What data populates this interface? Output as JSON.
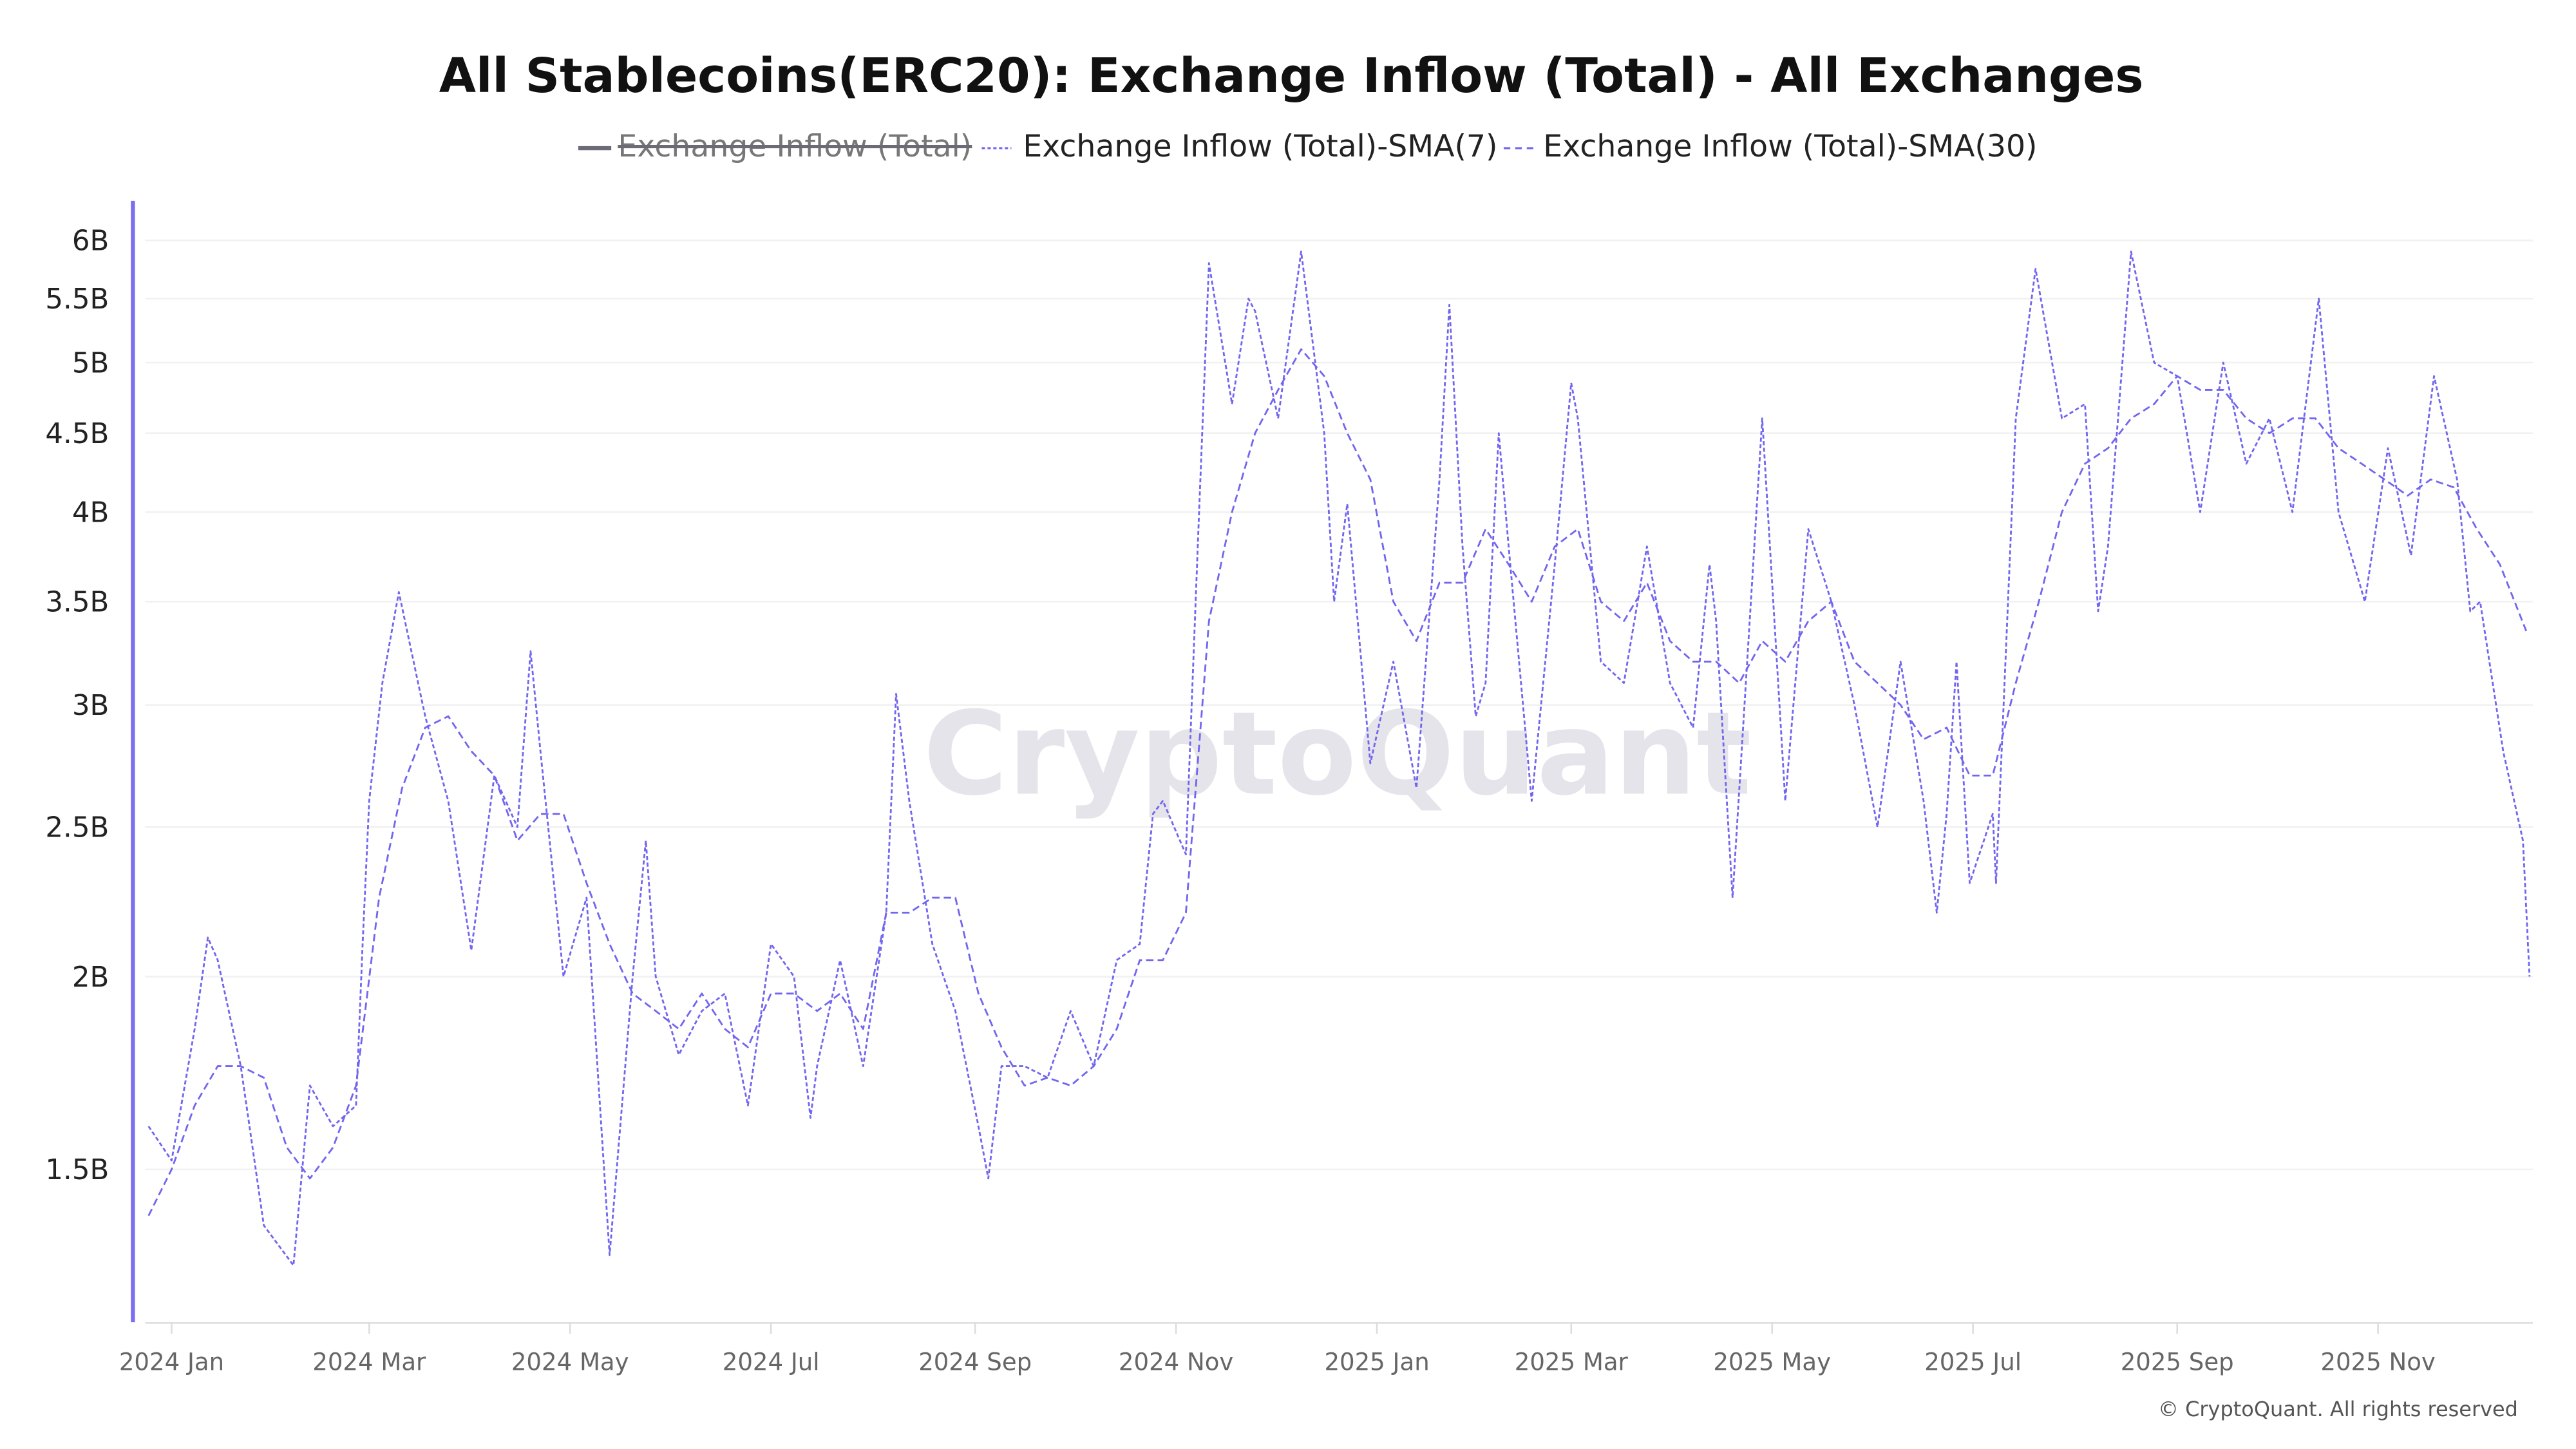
{
  "chart_data": {
    "type": "line",
    "title": "All Stablecoins(ERC20): Exchange Inflow (Total) - All Exchanges",
    "y_scale": "log",
    "ylim": [
      1.19,
      6.36
    ],
    "y_ticks": [
      {
        "value": 6,
        "label": "6B"
      },
      {
        "value": 5.5,
        "label": "5.5B"
      },
      {
        "value": 5,
        "label": "5B"
      },
      {
        "value": 4.5,
        "label": "4.5B"
      },
      {
        "value": 4,
        "label": "4B"
      },
      {
        "value": 3.5,
        "label": "3.5B"
      },
      {
        "value": 3,
        "label": "3B"
      },
      {
        "value": 2.5,
        "label": "2.5B"
      },
      {
        "value": 2,
        "label": "2B"
      },
      {
        "value": 1.5,
        "label": "1.5B"
      }
    ],
    "xlim": [
      "2023-12-24",
      "2025-12-17"
    ],
    "x_ticks": [
      {
        "date": "2024-01-01",
        "label": "2024 Jan"
      },
      {
        "date": "2024-03-01",
        "label": "2024 Mar"
      },
      {
        "date": "2024-05-01",
        "label": "2024 May"
      },
      {
        "date": "2024-07-01",
        "label": "2024 Jul"
      },
      {
        "date": "2024-09-01",
        "label": "2024 Sep"
      },
      {
        "date": "2024-11-01",
        "label": "2024 Nov"
      },
      {
        "date": "2025-01-01",
        "label": "2025 Jan"
      },
      {
        "date": "2025-03-01",
        "label": "2025 Mar"
      },
      {
        "date": "2025-05-01",
        "label": "2025 May"
      },
      {
        "date": "2025-07-01",
        "label": "2025 Jul"
      },
      {
        "date": "2025-09-01",
        "label": "2025 Sep"
      },
      {
        "date": "2025-11-01",
        "label": "2025 Nov"
      }
    ],
    "grid": true,
    "legend_position": "top",
    "line_color": "#7166ef",
    "legend": [
      {
        "name": "Exchange Inflow (Total)",
        "hidden": true,
        "color": "#6b6b78"
      },
      {
        "name": "Exchange Inflow (Total)-SMA(7)",
        "hidden": false,
        "color": "#7166ef"
      },
      {
        "name": "Exchange Inflow (Total)-SMA(30)",
        "hidden": false,
        "color": "#7166ef"
      }
    ],
    "series": [
      {
        "name": "Exchange Inflow (Total)-SMA(7)",
        "unit": "B",
        "points": [
          [
            "2023-12-25",
            1.6
          ],
          [
            "2024-01-01",
            1.52
          ],
          [
            "2024-01-08",
            1.85
          ],
          [
            "2024-01-12",
            2.12
          ],
          [
            "2024-01-15",
            2.05
          ],
          [
            "2024-01-22",
            1.75
          ],
          [
            "2024-01-29",
            1.38
          ],
          [
            "2024-02-07",
            1.3
          ],
          [
            "2024-02-12",
            1.7
          ],
          [
            "2024-02-19",
            1.6
          ],
          [
            "2024-02-26",
            1.65
          ],
          [
            "2024-02-28",
            2.1
          ],
          [
            "2024-03-01",
            2.6
          ],
          [
            "2024-03-05",
            3.1
          ],
          [
            "2024-03-10",
            3.55
          ],
          [
            "2024-03-18",
            2.95
          ],
          [
            "2024-03-25",
            2.6
          ],
          [
            "2024-04-01",
            2.08
          ],
          [
            "2024-04-08",
            2.7
          ],
          [
            "2024-04-15",
            2.5
          ],
          [
            "2024-04-19",
            3.25
          ],
          [
            "2024-04-22",
            2.8
          ],
          [
            "2024-04-29",
            2.0
          ],
          [
            "2024-05-06",
            2.25
          ],
          [
            "2024-05-13",
            1.32
          ],
          [
            "2024-05-20",
            2.0
          ],
          [
            "2024-05-24",
            2.45
          ],
          [
            "2024-05-27",
            2.0
          ],
          [
            "2024-06-03",
            1.78
          ],
          [
            "2024-06-10",
            1.9
          ],
          [
            "2024-06-17",
            1.95
          ],
          [
            "2024-06-24",
            1.65
          ],
          [
            "2024-07-01",
            2.1
          ],
          [
            "2024-07-08",
            2.0
          ],
          [
            "2024-07-13",
            1.62
          ],
          [
            "2024-07-15",
            1.75
          ],
          [
            "2024-07-22",
            2.05
          ],
          [
            "2024-07-29",
            1.75
          ],
          [
            "2024-08-05",
            2.2
          ],
          [
            "2024-08-08",
            3.05
          ],
          [
            "2024-08-12",
            2.6
          ],
          [
            "2024-08-19",
            2.1
          ],
          [
            "2024-08-26",
            1.9
          ],
          [
            "2024-09-02",
            1.6
          ],
          [
            "2024-09-05",
            1.48
          ],
          [
            "2024-09-09",
            1.75
          ],
          [
            "2024-09-16",
            1.75
          ],
          [
            "2024-09-23",
            1.72
          ],
          [
            "2024-09-30",
            1.9
          ],
          [
            "2024-10-07",
            1.75
          ],
          [
            "2024-10-14",
            2.05
          ],
          [
            "2024-10-21",
            2.1
          ],
          [
            "2024-10-25",
            2.55
          ],
          [
            "2024-10-28",
            2.6
          ],
          [
            "2024-11-04",
            2.4
          ],
          [
            "2024-11-08",
            4.0
          ],
          [
            "2024-11-11",
            5.8
          ],
          [
            "2024-11-18",
            4.7
          ],
          [
            "2024-11-23",
            5.5
          ],
          [
            "2024-11-25",
            5.4
          ],
          [
            "2024-12-02",
            4.6
          ],
          [
            "2024-12-09",
            5.9
          ],
          [
            "2024-12-16",
            4.5
          ],
          [
            "2024-12-19",
            3.5
          ],
          [
            "2024-12-23",
            4.05
          ],
          [
            "2024-12-30",
            2.75
          ],
          [
            "2025-01-06",
            3.2
          ],
          [
            "2025-01-13",
            2.65
          ],
          [
            "2025-01-20",
            4.2
          ],
          [
            "2025-01-23",
            5.45
          ],
          [
            "2025-01-27",
            3.8
          ],
          [
            "2025-01-31",
            2.95
          ],
          [
            "2025-02-03",
            3.1
          ],
          [
            "2025-02-07",
            4.5
          ],
          [
            "2025-02-10",
            3.8
          ],
          [
            "2025-02-17",
            2.6
          ],
          [
            "2025-02-24",
            3.7
          ],
          [
            "2025-03-01",
            4.85
          ],
          [
            "2025-03-03",
            4.6
          ],
          [
            "2025-03-10",
            3.2
          ],
          [
            "2025-03-17",
            3.1
          ],
          [
            "2025-03-24",
            3.8
          ],
          [
            "2025-03-31",
            3.1
          ],
          [
            "2025-04-07",
            2.9
          ],
          [
            "2025-04-12",
            3.7
          ],
          [
            "2025-04-14",
            3.4
          ],
          [
            "2025-04-19",
            2.25
          ],
          [
            "2025-04-28",
            4.6
          ],
          [
            "2025-05-05",
            2.6
          ],
          [
            "2025-05-12",
            3.9
          ],
          [
            "2025-05-19",
            3.5
          ],
          [
            "2025-05-26",
            3.0
          ],
          [
            "2025-06-02",
            2.5
          ],
          [
            "2025-06-09",
            3.2
          ],
          [
            "2025-06-16",
            2.6
          ],
          [
            "2025-06-20",
            2.2
          ],
          [
            "2025-06-23",
            2.55
          ],
          [
            "2025-06-26",
            3.2
          ],
          [
            "2025-06-30",
            2.3
          ],
          [
            "2025-07-07",
            2.55
          ],
          [
            "2025-07-08",
            2.3
          ],
          [
            "2025-07-14",
            4.6
          ],
          [
            "2025-07-20",
            5.75
          ],
          [
            "2025-07-28",
            4.6
          ],
          [
            "2025-08-04",
            4.7
          ],
          [
            "2025-08-08",
            3.45
          ],
          [
            "2025-08-11",
            3.8
          ],
          [
            "2025-08-18",
            5.9
          ],
          [
            "2025-08-25",
            5.0
          ],
          [
            "2025-09-01",
            4.9
          ],
          [
            "2025-09-08",
            4.0
          ],
          [
            "2025-09-15",
            5.0
          ],
          [
            "2025-09-22",
            4.3
          ],
          [
            "2025-09-29",
            4.6
          ],
          [
            "2025-10-06",
            4.0
          ],
          [
            "2025-10-14",
            5.5
          ],
          [
            "2025-10-20",
            4.0
          ],
          [
            "2025-10-28",
            3.5
          ],
          [
            "2025-11-04",
            4.4
          ],
          [
            "2025-11-11",
            3.75
          ],
          [
            "2025-11-18",
            4.9
          ],
          [
            "2025-11-25",
            4.2
          ],
          [
            "2025-11-29",
            3.45
          ],
          [
            "2025-12-02",
            3.5
          ],
          [
            "2025-12-09",
            2.8
          ],
          [
            "2025-12-15",
            2.45
          ],
          [
            "2025-12-17",
            2.0
          ]
        ]
      },
      {
        "name": "Exchange Inflow (Total)-SMA(30)",
        "unit": "B",
        "points": [
          [
            "2023-12-25",
            1.4
          ],
          [
            "2024-01-01",
            1.5
          ],
          [
            "2024-01-08",
            1.65
          ],
          [
            "2024-01-15",
            1.75
          ],
          [
            "2024-01-22",
            1.75
          ],
          [
            "2024-01-29",
            1.72
          ],
          [
            "2024-02-05",
            1.55
          ],
          [
            "2024-02-12",
            1.48
          ],
          [
            "2024-02-19",
            1.55
          ],
          [
            "2024-02-26",
            1.7
          ],
          [
            "2024-03-04",
            2.25
          ],
          [
            "2024-03-11",
            2.65
          ],
          [
            "2024-03-18",
            2.9
          ],
          [
            "2024-03-25",
            2.95
          ],
          [
            "2024-04-01",
            2.8
          ],
          [
            "2024-04-08",
            2.7
          ],
          [
            "2024-04-15",
            2.45
          ],
          [
            "2024-04-22",
            2.55
          ],
          [
            "2024-04-29",
            2.55
          ],
          [
            "2024-05-06",
            2.3
          ],
          [
            "2024-05-13",
            2.1
          ],
          [
            "2024-05-20",
            1.95
          ],
          [
            "2024-05-27",
            1.9
          ],
          [
            "2024-06-03",
            1.85
          ],
          [
            "2024-06-10",
            1.95
          ],
          [
            "2024-06-17",
            1.85
          ],
          [
            "2024-06-24",
            1.8
          ],
          [
            "2024-07-01",
            1.95
          ],
          [
            "2024-07-08",
            1.95
          ],
          [
            "2024-07-15",
            1.9
          ],
          [
            "2024-07-22",
            1.95
          ],
          [
            "2024-07-29",
            1.85
          ],
          [
            "2024-08-05",
            2.2
          ],
          [
            "2024-08-12",
            2.2
          ],
          [
            "2024-08-19",
            2.25
          ],
          [
            "2024-08-26",
            2.25
          ],
          [
            "2024-09-02",
            1.95
          ],
          [
            "2024-09-09",
            1.8
          ],
          [
            "2024-09-16",
            1.7
          ],
          [
            "2024-09-23",
            1.72
          ],
          [
            "2024-09-30",
            1.7
          ],
          [
            "2024-10-07",
            1.75
          ],
          [
            "2024-10-14",
            1.85
          ],
          [
            "2024-10-21",
            2.05
          ],
          [
            "2024-10-28",
            2.05
          ],
          [
            "2024-11-04",
            2.2
          ],
          [
            "2024-11-11",
            3.4
          ],
          [
            "2024-11-18",
            4.0
          ],
          [
            "2024-11-25",
            4.5
          ],
          [
            "2024-12-02",
            4.8
          ],
          [
            "2024-12-09",
            5.1
          ],
          [
            "2024-12-16",
            4.9
          ],
          [
            "2024-12-23",
            4.5
          ],
          [
            "2024-12-30",
            4.2
          ],
          [
            "2025-01-06",
            3.5
          ],
          [
            "2025-01-13",
            3.3
          ],
          [
            "2025-01-20",
            3.6
          ],
          [
            "2025-01-27",
            3.6
          ],
          [
            "2025-02-03",
            3.9
          ],
          [
            "2025-02-10",
            3.7
          ],
          [
            "2025-02-17",
            3.5
          ],
          [
            "2025-02-24",
            3.8
          ],
          [
            "2025-03-03",
            3.9
          ],
          [
            "2025-03-10",
            3.5
          ],
          [
            "2025-03-17",
            3.4
          ],
          [
            "2025-03-24",
            3.6
          ],
          [
            "2025-03-31",
            3.3
          ],
          [
            "2025-04-07",
            3.2
          ],
          [
            "2025-04-14",
            3.2
          ],
          [
            "2025-04-21",
            3.1
          ],
          [
            "2025-04-28",
            3.3
          ],
          [
            "2025-05-05",
            3.2
          ],
          [
            "2025-05-12",
            3.4
          ],
          [
            "2025-05-19",
            3.5
          ],
          [
            "2025-05-26",
            3.2
          ],
          [
            "2025-06-02",
            3.1
          ],
          [
            "2025-06-09",
            3.0
          ],
          [
            "2025-06-16",
            2.85
          ],
          [
            "2025-06-23",
            2.9
          ],
          [
            "2025-06-30",
            2.7
          ],
          [
            "2025-07-07",
            2.7
          ],
          [
            "2025-07-14",
            3.1
          ],
          [
            "2025-07-21",
            3.5
          ],
          [
            "2025-07-28",
            4.0
          ],
          [
            "2025-08-04",
            4.3
          ],
          [
            "2025-08-11",
            4.4
          ],
          [
            "2025-08-18",
            4.6
          ],
          [
            "2025-08-25",
            4.7
          ],
          [
            "2025-09-01",
            4.9
          ],
          [
            "2025-09-08",
            4.8
          ],
          [
            "2025-09-15",
            4.8
          ],
          [
            "2025-09-22",
            4.6
          ],
          [
            "2025-09-29",
            4.5
          ],
          [
            "2025-10-06",
            4.6
          ],
          [
            "2025-10-13",
            4.6
          ],
          [
            "2025-10-20",
            4.4
          ],
          [
            "2025-10-27",
            4.3
          ],
          [
            "2025-11-03",
            4.2
          ],
          [
            "2025-11-10",
            4.1
          ],
          [
            "2025-11-17",
            4.2
          ],
          [
            "2025-11-24",
            4.15
          ],
          [
            "2025-12-01",
            3.9
          ],
          [
            "2025-12-08",
            3.7
          ],
          [
            "2025-12-16",
            3.35
          ]
        ]
      }
    ]
  },
  "watermark": "CryptoQuant",
  "footer": "© CryptoQuant. All rights reserved"
}
